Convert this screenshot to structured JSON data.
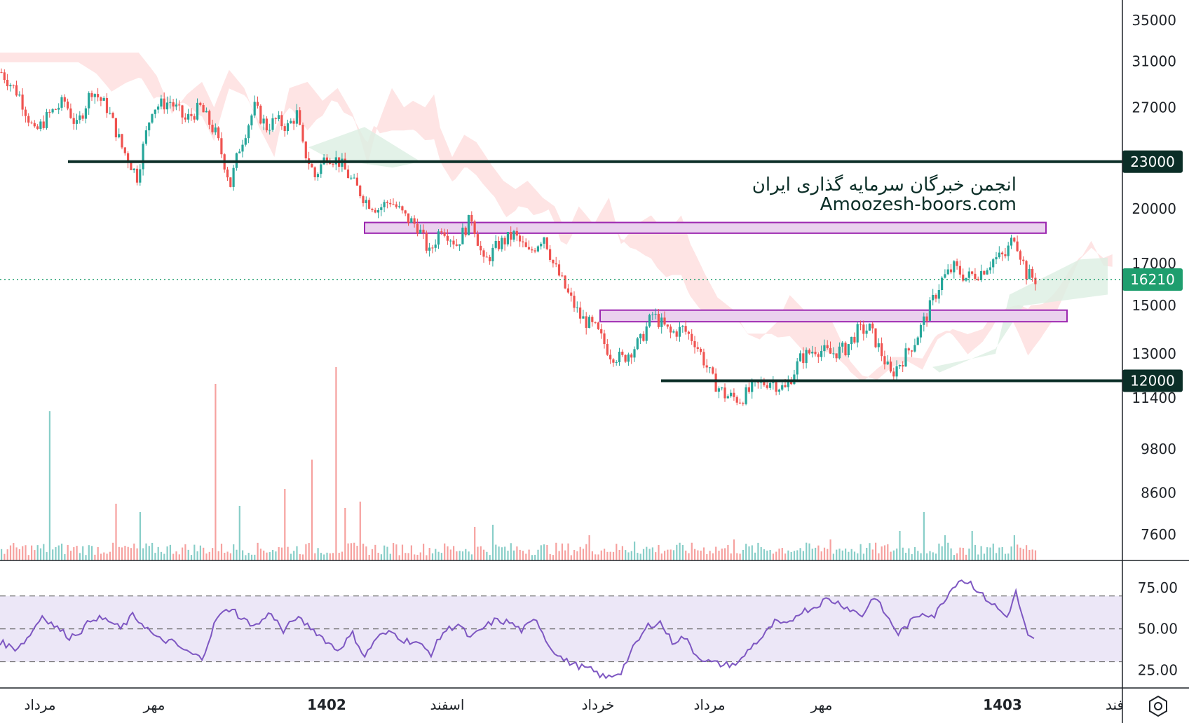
{
  "chart_data": {
    "type": "candlestick",
    "price_axis": {
      "scale": "log",
      "ticks": [
        35000,
        31000,
        27000,
        20000,
        17000,
        15000,
        13000,
        11400,
        9800,
        8600,
        7600
      ]
    },
    "rsi_axis": {
      "ticks": [
        "75.00",
        "50.00",
        "25.00"
      ],
      "levels": [
        70,
        50,
        30
      ]
    },
    "time_labels": [
      {
        "text": "مرداد",
        "bold": false
      },
      {
        "text": "مهر",
        "bold": false
      },
      {
        "text": "1402",
        "bold": true
      },
      {
        "text": "اسفند",
        "bold": false
      },
      {
        "text": "خرداد",
        "bold": false
      },
      {
        "text": "مرداد",
        "bold": false
      },
      {
        "text": "مهر",
        "bold": false
      },
      {
        "text": "1403",
        "bold": true
      },
      {
        "text": "فند",
        "bold": false
      }
    ],
    "horizontal_levels": [
      {
        "price": 23000,
        "label": "23000",
        "color": "#0b2e27"
      },
      {
        "price": 12000,
        "label": "12000",
        "color": "#0b2e27"
      }
    ],
    "current_price": {
      "price": 16210,
      "label": "16210",
      "color": "#1e9e6e"
    },
    "zones": [
      {
        "high": 19200,
        "low": 18600,
        "color": "#9c27b0"
      },
      {
        "high": 14800,
        "low": 14300,
        "color": "#9c27b0"
      }
    ],
    "price_path": [
      [
        0,
        30000
      ],
      [
        6,
        28000
      ],
      [
        11,
        25000
      ],
      [
        16,
        26500
      ],
      [
        21,
        27500
      ],
      [
        25,
        25500
      ],
      [
        30,
        28500
      ],
      [
        35,
        27000
      ],
      [
        40,
        24000
      ],
      [
        45,
        22000
      ],
      [
        50,
        27000
      ],
      [
        56,
        27500
      ],
      [
        61,
        26000
      ],
      [
        66,
        27000
      ],
      [
        71,
        25000
      ],
      [
        76,
        21500
      ],
      [
        79,
        24000
      ],
      [
        84,
        27000
      ],
      [
        88,
        25500
      ],
      [
        91,
        26000
      ],
      [
        95,
        25500
      ],
      [
        98,
        26500
      ],
      [
        100,
        24000
      ],
      [
        104,
        22000
      ],
      [
        108,
        23500
      ],
      [
        112,
        23000
      ],
      [
        117,
        21500
      ],
      [
        121,
        20500
      ],
      [
        125,
        20000
      ],
      [
        129,
        20500
      ],
      [
        134,
        19500
      ],
      [
        138,
        19000
      ],
      [
        142,
        17500
      ],
      [
        146,
        19000
      ],
      [
        151,
        18000
      ],
      [
        156,
        19500
      ],
      [
        160,
        17000
      ],
      [
        165,
        18000
      ],
      [
        170,
        18500
      ],
      [
        175,
        17500
      ],
      [
        180,
        18500
      ],
      [
        183,
        17000
      ],
      [
        188,
        15500
      ],
      [
        192,
        14500
      ],
      [
        197,
        14000
      ],
      [
        202,
        13000
      ],
      [
        206,
        12800
      ],
      [
        212,
        13500
      ],
      [
        216,
        14600
      ],
      [
        222,
        13800
      ],
      [
        226,
        14000
      ],
      [
        230,
        13500
      ],
      [
        234,
        12500
      ],
      [
        236,
        12000
      ],
      [
        240,
        11500
      ],
      [
        245,
        11350
      ],
      [
        250,
        11800
      ],
      [
        255,
        12000
      ],
      [
        260,
        11700
      ],
      [
        265,
        12800
      ],
      [
        270,
        13200
      ],
      [
        275,
        13000
      ],
      [
        280,
        13200
      ],
      [
        284,
        13900
      ],
      [
        288,
        14000
      ],
      [
        292,
        13000
      ],
      [
        295,
        12200
      ],
      [
        299,
        12800
      ],
      [
        303,
        13500
      ],
      [
        307,
        14600
      ],
      [
        312,
        16200
      ],
      [
        316,
        16800
      ],
      [
        320,
        16300
      ],
      [
        325,
        16600
      ],
      [
        329,
        17200
      ],
      [
        333,
        17400
      ],
      [
        336,
        18500
      ],
      [
        340,
        16500
      ],
      [
        343,
        16210
      ]
    ],
    "candle_count": 344,
    "rsi_path": [
      [
        0,
        42
      ],
      [
        5,
        38
      ],
      [
        9,
        44
      ],
      [
        14,
        58
      ],
      [
        18,
        52
      ],
      [
        23,
        45
      ],
      [
        27,
        49
      ],
      [
        31,
        57
      ],
      [
        36,
        55
      ],
      [
        40,
        50
      ],
      [
        44,
        58
      ],
      [
        48,
        52
      ],
      [
        52,
        44
      ],
      [
        57,
        42
      ],
      [
        62,
        36
      ],
      [
        67,
        32
      ],
      [
        72,
        57
      ],
      [
        77,
        63
      ],
      [
        80,
        56
      ],
      [
        85,
        52
      ],
      [
        90,
        60
      ],
      [
        94,
        48
      ],
      [
        98,
        57
      ],
      [
        103,
        51
      ],
      [
        108,
        43
      ],
      [
        112,
        37
      ],
      [
        117,
        47
      ],
      [
        121,
        33
      ],
      [
        125,
        45
      ],
      [
        130,
        48
      ],
      [
        134,
        43
      ],
      [
        138,
        42
      ],
      [
        143,
        35
      ],
      [
        147,
        48
      ],
      [
        152,
        53
      ],
      [
        156,
        44
      ],
      [
        160,
        50
      ],
      [
        164,
        55
      ],
      [
        169,
        54
      ],
      [
        173,
        49
      ],
      [
        178,
        56
      ],
      [
        182,
        40
      ],
      [
        187,
        31
      ],
      [
        191,
        28
      ],
      [
        196,
        25
      ],
      [
        201,
        20
      ],
      [
        206,
        24
      ],
      [
        210,
        38
      ],
      [
        215,
        52
      ],
      [
        219,
        54
      ],
      [
        223,
        42
      ],
      [
        227,
        45
      ],
      [
        231,
        34
      ],
      [
        235,
        30
      ],
      [
        240,
        28
      ],
      [
        245,
        29
      ],
      [
        249,
        39
      ],
      [
        253,
        45
      ],
      [
        257,
        54
      ],
      [
        261,
        52
      ],
      [
        265,
        60
      ],
      [
        270,
        63
      ],
      [
        274,
        68
      ],
      [
        278,
        66
      ],
      [
        282,
        62
      ],
      [
        286,
        58
      ],
      [
        290,
        70
      ],
      [
        294,
        58
      ],
      [
        298,
        47
      ],
      [
        302,
        54
      ],
      [
        306,
        60
      ],
      [
        310,
        58
      ],
      [
        314,
        70
      ],
      [
        318,
        80
      ],
      [
        322,
        78
      ],
      [
        326,
        70
      ],
      [
        330,
        64
      ],
      [
        334,
        57
      ],
      [
        337,
        72
      ],
      [
        341,
        45
      ],
      [
        343,
        43
      ]
    ],
    "volume_spikes": [
      [
        16,
        7.1
      ],
      [
        38,
        2.7
      ],
      [
        46,
        2.3
      ],
      [
        71,
        8.4
      ],
      [
        79,
        2.6
      ],
      [
        94,
        3.4
      ],
      [
        103,
        4.8
      ],
      [
        111,
        9.2
      ],
      [
        114,
        2.5
      ],
      [
        119,
        2.8
      ],
      [
        157,
        1.6
      ],
      [
        163,
        1.7
      ],
      [
        195,
        1.2
      ],
      [
        210,
        0.9
      ],
      [
        243,
        1.0
      ],
      [
        275,
        1.0
      ],
      [
        298,
        1.4
      ],
      [
        306,
        2.3
      ],
      [
        313,
        1.2
      ],
      [
        322,
        1.4
      ],
      [
        336,
        1.2
      ]
    ],
    "watermark": {
      "line1": "انجمن خبرگان سرمایه گذاری ایران",
      "line2": "Amoozesh-boors.com"
    },
    "colors": {
      "up": "#26a69a",
      "down": "#ef5350",
      "cloud_bear": "#fdd9d9",
      "cloud_bull": "#dcefe2",
      "rsi_line": "#7e57c2",
      "rsi_band": "#ece7f7",
      "zone_fill": "#ead1ee"
    }
  }
}
